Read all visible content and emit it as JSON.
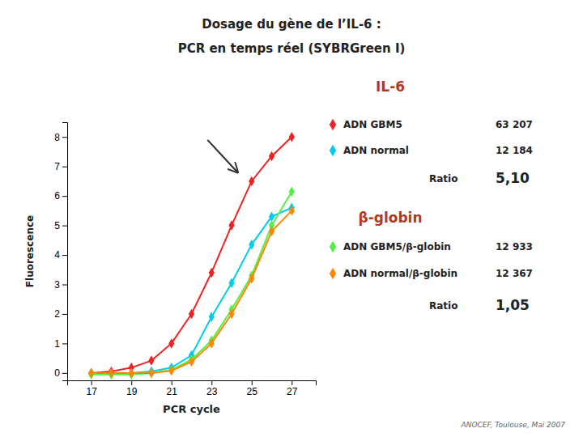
{
  "chart_data": {
    "type": "line",
    "title": "Dosage du gène de l’IL-6 :",
    "subtitle": "PCR en temps réel (SYBRGreen I)",
    "xlabel": "PCR cycle",
    "ylabel": "Fluorescence",
    "xlim": [
      15.8,
      28.2
    ],
    "ylim": [
      -0.25,
      8.5
    ],
    "xticks": [
      17,
      19,
      21,
      23,
      25,
      27
    ],
    "yticks": [
      0,
      1,
      2,
      3,
      4,
      5,
      6,
      7,
      8
    ],
    "grid": false,
    "x": [
      17,
      18,
      19,
      20,
      21,
      22,
      23,
      24,
      25,
      26,
      27
    ],
    "series": [
      {
        "name": "ADN GBM5",
        "color": "#EE2222",
        "marker": "diamond",
        "values": [
          0.0,
          0.05,
          0.18,
          0.42,
          1.0,
          2.0,
          3.4,
          5.0,
          6.5,
          7.35,
          8.0
        ]
      },
      {
        "name": "ADN normal",
        "color": "#00CCEE",
        "marker": "diamond",
        "values": [
          0.0,
          0.0,
          0.0,
          0.05,
          0.18,
          0.6,
          1.9,
          3.05,
          4.35,
          5.3,
          5.6
        ]
      },
      {
        "name": "ADN GBM5/β-globin",
        "color": "#55EE44",
        "marker": "diamond",
        "values": [
          -0.05,
          -0.05,
          -0.05,
          0.0,
          0.1,
          0.45,
          1.1,
          2.15,
          3.3,
          5.0,
          6.15
        ]
      },
      {
        "name": "ADN normal/β-globin",
        "color": "#FF8800",
        "marker": "diamond",
        "values": [
          0.0,
          0.0,
          0.0,
          0.0,
          0.08,
          0.38,
          1.0,
          2.0,
          3.2,
          4.8,
          5.5
        ]
      }
    ],
    "annotations": [
      {
        "text": "IL-6"
      },
      {
        "text": "63 207"
      },
      {
        "text": "12 184"
      },
      {
        "text": "Ratio"
      },
      {
        "text": "5,10"
      },
      {
        "text": "β-globin"
      },
      {
        "text": "12 933"
      },
      {
        "text": "12 367"
      },
      {
        "text": "Ratio"
      },
      {
        "text": "1,05"
      },
      {
        "text": "ANOCEF, Toulouse, Mai 2007"
      }
    ]
  }
}
